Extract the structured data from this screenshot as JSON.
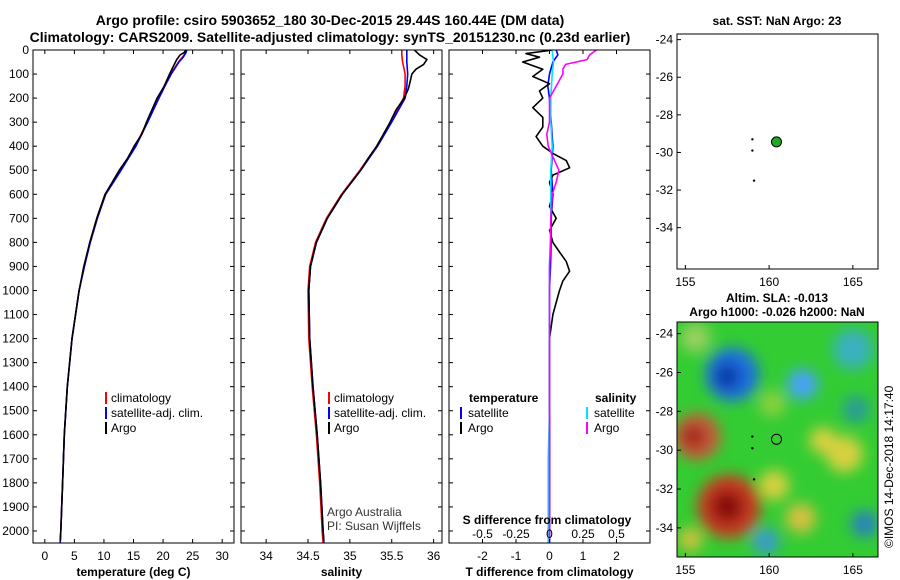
{
  "header": {
    "line1": "Argo profile: csiro 5903652_180 30-Dec-2015 29.44S 160.44E (DM data)",
    "line2": "Climatology: CARS2009. Satellite-adjusted climatology: synTS_20151230.nc (0.23d earlier)"
  },
  "colors": {
    "climatology": "#ff0000",
    "satellite": "#0000ff",
    "argo": "#000000",
    "sat_salinity": "#00e5ff",
    "argo_salinity": "#ff00ff",
    "float_marker": "#22aa22"
  },
  "depth_axis": {
    "range": [
      0,
      2050
    ],
    "ticks": [
      0,
      100,
      200,
      300,
      400,
      500,
      600,
      700,
      800,
      900,
      1000,
      1100,
      1200,
      1300,
      1400,
      1500,
      1600,
      1700,
      1800,
      1900,
      2000
    ]
  },
  "chart_data": [
    {
      "type": "line",
      "id": "temperature",
      "xlabel": "temperature (deg C)",
      "xlim": [
        -2,
        32
      ],
      "xticks": [
        0,
        5,
        10,
        15,
        20,
        25,
        30
      ],
      "ylim": [
        0,
        2050
      ],
      "series": [
        {
          "name": "climatology",
          "color": "#ff0000",
          "depth": [
            0,
            20,
            50,
            100,
            150,
            200,
            300,
            400,
            500,
            600,
            700,
            800,
            900,
            1000,
            1200,
            1400,
            1600,
            1800,
            2000,
            2050
          ],
          "values": [
            23.8,
            23.6,
            22.6,
            21.3,
            20.3,
            19.3,
            17.3,
            15.3,
            12.8,
            10.2,
            8.8,
            7.6,
            6.7,
            5.8,
            4.6,
            3.8,
            3.3,
            3.0,
            2.7,
            2.6
          ]
        },
        {
          "name": "satellite-adj. clim.",
          "color": "#0000ff",
          "depth": [
            0,
            10,
            30,
            50,
            100,
            150,
            200,
            300,
            400,
            500,
            600,
            700,
            800,
            900,
            1000,
            1200,
            1400,
            1600,
            1800,
            2000,
            2050
          ],
          "values": [
            24.0,
            23.9,
            23.4,
            22.7,
            21.4,
            20.3,
            19.3,
            17.4,
            15.4,
            12.9,
            10.3,
            8.9,
            7.7,
            6.7,
            5.8,
            4.6,
            3.8,
            3.3,
            3.0,
            2.7,
            2.6
          ]
        },
        {
          "name": "Argo",
          "color": "#000000",
          "depth": [
            0,
            10,
            20,
            40,
            60,
            100,
            150,
            200,
            250,
            300,
            350,
            400,
            450,
            500,
            550,
            600,
            700,
            800,
            900,
            1000,
            1200,
            1400,
            1600,
            1800,
            2000,
            2040
          ],
          "values": [
            23.9,
            23.6,
            22.9,
            22.3,
            21.9,
            21.1,
            20.2,
            19.0,
            18.1,
            17.2,
            16.4,
            15.1,
            14.0,
            12.6,
            11.4,
            10.2,
            8.8,
            7.6,
            6.6,
            5.8,
            4.6,
            3.8,
            3.3,
            3.0,
            2.7,
            2.6
          ]
        }
      ],
      "legend": [
        "climatology",
        "satellite-adj. clim.",
        "Argo"
      ]
    },
    {
      "type": "line",
      "id": "salinity",
      "xlabel": "salinity",
      "xlim": [
        33.7,
        36.1
      ],
      "xticks": [
        34,
        34.5,
        35,
        35.5,
        36
      ],
      "ylim": [
        0,
        2050
      ],
      "series": [
        {
          "name": "climatology",
          "color": "#ff0000",
          "depth": [
            0,
            20,
            50,
            100,
            150,
            200,
            300,
            400,
            500,
            600,
            700,
            800,
            900,
            1000,
            1200,
            1400,
            1600,
            1800,
            2000,
            2050
          ],
          "values": [
            35.62,
            35.62,
            35.63,
            35.66,
            35.66,
            35.64,
            35.49,
            35.32,
            35.12,
            34.9,
            34.72,
            34.59,
            34.52,
            34.5,
            34.51,
            34.55,
            34.6,
            34.64,
            34.67,
            34.68
          ]
        },
        {
          "name": "satellite-adj. clim.",
          "color": "#0000ff",
          "depth": [
            0,
            20,
            50,
            100,
            150,
            200,
            300,
            400,
            500,
            600,
            700,
            800,
            900,
            1000,
            1200,
            1400,
            1600,
            1800,
            2000,
            2050
          ],
          "values": [
            35.68,
            35.68,
            35.68,
            35.69,
            35.68,
            35.66,
            35.5,
            35.33,
            35.13,
            34.91,
            34.73,
            34.6,
            34.53,
            34.51,
            34.52,
            34.56,
            34.61,
            34.65,
            34.68,
            34.69
          ]
        },
        {
          "name": "Argo",
          "color": "#000000",
          "depth": [
            0,
            20,
            40,
            60,
            80,
            100,
            130,
            160,
            200,
            250,
            300,
            350,
            400,
            450,
            500,
            600,
            700,
            800,
            900,
            1000,
            1200,
            1400,
            1600,
            1800,
            2000,
            2040
          ],
          "values": [
            35.77,
            35.83,
            35.92,
            35.88,
            35.79,
            35.74,
            35.72,
            35.7,
            35.65,
            35.55,
            35.48,
            35.4,
            35.32,
            35.22,
            35.13,
            34.91,
            34.73,
            34.6,
            34.53,
            34.51,
            34.52,
            34.56,
            34.61,
            34.65,
            34.68,
            34.69
          ]
        }
      ],
      "legend": [
        "climatology",
        "satellite-adj. clim.",
        "Argo"
      ],
      "credits": [
        "Argo Australia",
        "PI: Susan Wijffels"
      ]
    },
    {
      "type": "line",
      "id": "difference",
      "xlabel": "T difference from climatology",
      "xlabel_top": "S difference from climatology",
      "xlim": [
        -3,
        3
      ],
      "xticks": [
        -2,
        -1,
        0,
        1,
        2
      ],
      "s_ticks": [
        "-0.5",
        "-0.25",
        "0",
        "0.25",
        "0.5"
      ],
      "ylim": [
        0,
        2050
      ],
      "series": [
        {
          "name": "temperature satellite",
          "color": "#0000ff",
          "depth": [
            0,
            20,
            50,
            100,
            150,
            200,
            300,
            400,
            500,
            600,
            700,
            800,
            900,
            1000,
            1200,
            1400,
            1600,
            1800,
            2000,
            2050
          ],
          "values": [
            0.2,
            0.25,
            0.1,
            0.0,
            -0.05,
            0.0,
            0.05,
            0.1,
            0.05,
            0.1,
            0.05,
            0.05,
            0.03,
            0.0,
            0.0,
            0.0,
            0.0,
            0.0,
            0.0,
            0.0
          ]
        },
        {
          "name": "temperature Argo",
          "color": "#000000",
          "depth": [
            0,
            15,
            30,
            50,
            80,
            110,
            140,
            170,
            200,
            240,
            280,
            320,
            360,
            400,
            430,
            460,
            490,
            520,
            550,
            600,
            650,
            700,
            750,
            800,
            840,
            880,
            920,
            960,
            1000,
            1050,
            1100,
            1200,
            1300,
            1500,
            1700,
            1900,
            2040
          ],
          "values": [
            0.1,
            -0.7,
            -0.3,
            -0.8,
            -0.2,
            -0.5,
            0.0,
            -0.3,
            -0.2,
            -0.5,
            -0.2,
            -0.2,
            -0.4,
            -0.2,
            0.1,
            0.5,
            0.6,
            0.1,
            0.0,
            0.1,
            0.0,
            0.2,
            0.0,
            0.1,
            0.3,
            0.5,
            0.6,
            0.4,
            0.3,
            0.2,
            0.1,
            0.0,
            0.0,
            0.0,
            0.0,
            0.0,
            0.0
          ]
        },
        {
          "name": "salinity satellite",
          "color": "#00e5ff",
          "depth": [
            0,
            50,
            100,
            200,
            300,
            400,
            500,
            700,
            900,
            1100,
            1300,
            1500,
            1700,
            1900,
            2050
          ],
          "values": [
            0.02,
            0.03,
            0.02,
            0.01,
            0.01,
            0.02,
            0.01,
            0.01,
            0.0,
            0.0,
            0.0,
            0.0,
            -0.01,
            -0.01,
            -0.01
          ]
        },
        {
          "name": "salinity Argo",
          "color": "#ff00ff",
          "depth": [
            0,
            20,
            40,
            60,
            80,
            100,
            150,
            200,
            250,
            300,
            350,
            400,
            450,
            500,
            550,
            600,
            700,
            800,
            900,
            1000,
            1200,
            1400,
            1600,
            1800,
            2000,
            2040
          ],
          "values": [
            0.35,
            0.3,
            0.28,
            0.12,
            0.1,
            0.1,
            0.05,
            0.0,
            0.0,
            0.0,
            -0.02,
            -0.01,
            0.03,
            0.07,
            0.05,
            0.02,
            0.01,
            0.01,
            0.0,
            0.0,
            0.0,
            0.0,
            0.0,
            0.0,
            0.0,
            0.0
          ]
        }
      ],
      "legend_temperature": {
        "title": "temperature",
        "items": [
          "satellite",
          "Argo"
        ]
      },
      "legend_salinity": {
        "title": "salinity",
        "items": [
          "satellite",
          "Argo"
        ]
      }
    },
    {
      "type": "scatter",
      "id": "sst_map",
      "title": "sat. SST: NaN Argo: 23",
      "xlim": [
        154.5,
        166.5
      ],
      "ylim": [
        -36.2,
        -23.7
      ],
      "xticks": [
        155,
        160,
        165
      ],
      "yticks": [
        -24,
        -26,
        -28,
        -30,
        -32,
        -34
      ],
      "float": {
        "lon": 160.44,
        "lat": -29.44
      },
      "track": [
        {
          "lon": 159.0,
          "lat": -29.3
        },
        {
          "lon": 159.0,
          "lat": -29.9
        },
        {
          "lon": 159.1,
          "lat": -31.5
        }
      ]
    },
    {
      "type": "heatmap",
      "id": "sla_map",
      "title1": "Altim. SLA: -0.013",
      "title2": "Argo h1000: -0.026 h2000: NaN",
      "xlim": [
        154.5,
        166.5
      ],
      "ylim": [
        -35.5,
        -23.4
      ],
      "xticks": [
        155,
        160,
        165
      ],
      "yticks": [
        -24,
        -26,
        -28,
        -30,
        -32,
        -34
      ],
      "float": {
        "lon": 160.44,
        "lat": -29.44
      },
      "track": [
        {
          "lon": 159.0,
          "lat": -29.3
        },
        {
          "lon": 159.0,
          "lat": -29.9
        },
        {
          "lon": 159.1,
          "lat": -31.5
        }
      ],
      "base_color": "#33cc33",
      "blobs": [
        {
          "lon": 157.8,
          "lat": -26.1,
          "r": 1.6,
          "color": "#1a70e0"
        },
        {
          "lon": 157.5,
          "lat": -26.2,
          "r": 0.8,
          "color": "#0b3aa8"
        },
        {
          "lon": 162.0,
          "lat": -26.6,
          "r": 0.9,
          "color": "#4aa0ff"
        },
        {
          "lon": 155.6,
          "lat": -24.2,
          "r": 0.9,
          "color": "#9ad060"
        },
        {
          "lon": 165.0,
          "lat": -24.8,
          "r": 1.2,
          "color": "#3ab0c0"
        },
        {
          "lon": 155.7,
          "lat": -29.3,
          "r": 1.4,
          "color": "#c85a3a"
        },
        {
          "lon": 155.5,
          "lat": -29.3,
          "r": 0.7,
          "color": "#a02818"
        },
        {
          "lon": 157.6,
          "lat": -32.9,
          "r": 1.9,
          "color": "#c83a22"
        },
        {
          "lon": 157.5,
          "lat": -32.9,
          "r": 1.0,
          "color": "#8a1010"
        },
        {
          "lon": 160.3,
          "lat": -31.8,
          "r": 0.9,
          "color": "#d8d040"
        },
        {
          "lon": 164.5,
          "lat": -30.2,
          "r": 1.1,
          "color": "#d8d040"
        },
        {
          "lon": 163.2,
          "lat": -29.5,
          "r": 0.8,
          "color": "#d8d040"
        },
        {
          "lon": 165.2,
          "lat": -27.9,
          "r": 0.8,
          "color": "#2a9a9a"
        },
        {
          "lon": 161.9,
          "lat": -33.5,
          "r": 0.9,
          "color": "#d8c040"
        },
        {
          "lon": 165.7,
          "lat": -33.8,
          "r": 0.8,
          "color": "#2a80c0"
        },
        {
          "lon": 159.8,
          "lat": -34.7,
          "r": 0.8,
          "color": "#3a9ad0"
        },
        {
          "lon": 155.3,
          "lat": -34.6,
          "r": 0.7,
          "color": "#d8c040"
        },
        {
          "lon": 160.2,
          "lat": -27.6,
          "r": 0.8,
          "color": "#8cd040"
        }
      ]
    }
  ],
  "watermark": "©IMOS 14-Dec-2018 14:17:40"
}
